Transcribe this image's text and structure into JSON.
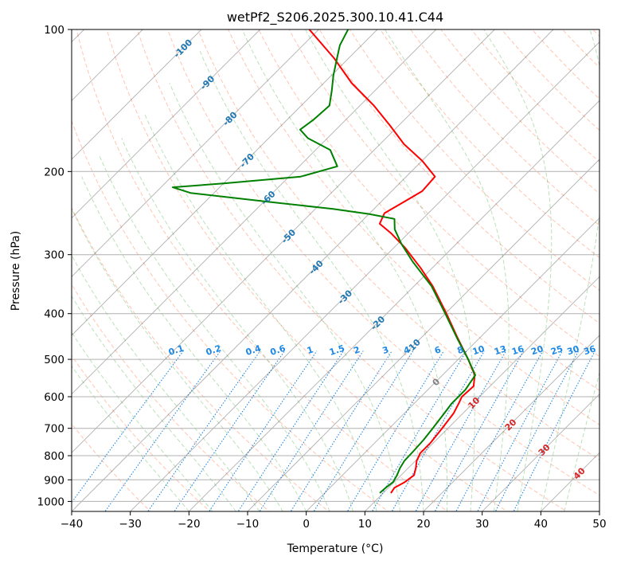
{
  "chart_data": {
    "type": "line",
    "title": "wetPf2_S206.2025.300.10.41.C44",
    "xlabel": "Temperature (°C)",
    "ylabel": "Pressure (hPa)",
    "xlim": [
      -40,
      50
    ],
    "ylim": [
      1050,
      100
    ],
    "x_ticks": [
      -40,
      -30,
      -20,
      -10,
      0,
      10,
      20,
      30,
      40,
      50
    ],
    "x_tick_labels": [
      "−40",
      "−30",
      "−20",
      "−10",
      "0",
      "10",
      "20",
      "30",
      "40",
      "50"
    ],
    "y_ticks": [
      100,
      200,
      300,
      400,
      500,
      600,
      700,
      800,
      900,
      1000
    ],
    "y_tick_labels": [
      "100",
      "200",
      "300",
      "400",
      "500",
      "600",
      "700",
      "800",
      "900",
      "1000"
    ],
    "grid": true,
    "colors": {
      "temperature": "#ff0000",
      "dewpoint": "#008000",
      "isotherm": "#000000",
      "dry_adiabat": "#ff7f50",
      "moist_adiabat": "#2ca02c",
      "mixing_ratio": "#1e88e5",
      "isotherm_label_cold": "#1f77b4",
      "isotherm_label_zero": "#808080",
      "isotherm_label_warm": "#d62728"
    },
    "series": [
      {
        "name": "Temperature",
        "points": [
          {
            "p": 960,
            "t": 11.3
          },
          {
            "p": 935,
            "t": 11.0
          },
          {
            "p": 910,
            "t": 11.8
          },
          {
            "p": 880,
            "t": 12.2
          },
          {
            "p": 850,
            "t": 11.3
          },
          {
            "p": 820,
            "t": 10.2
          },
          {
            "p": 790,
            "t": 9.5
          },
          {
            "p": 750,
            "t": 9.5
          },
          {
            "p": 700,
            "t": 9.0
          },
          {
            "p": 650,
            "t": 8.4
          },
          {
            "p": 620,
            "t": 7.6
          },
          {
            "p": 600,
            "t": 7.0
          },
          {
            "p": 570,
            "t": 7.2
          },
          {
            "p": 540,
            "t": 5.5
          },
          {
            "p": 500,
            "t": 1.7
          },
          {
            "p": 450,
            "t": -3.8
          },
          {
            "p": 400,
            "t": -9.8
          },
          {
            "p": 350,
            "t": -16.8
          },
          {
            "p": 320,
            "t": -22.0
          },
          {
            "p": 290,
            "t": -28.1
          },
          {
            "p": 270,
            "t": -33.0
          },
          {
            "p": 258,
            "t": -36.5
          },
          {
            "p": 245,
            "t": -37.5
          },
          {
            "p": 232,
            "t": -36.1
          },
          {
            "p": 220,
            "t": -34.8
          },
          {
            "p": 205,
            "t": -35.1
          },
          {
            "p": 190,
            "t": -39.9
          },
          {
            "p": 175,
            "t": -45.9
          },
          {
            "p": 160,
            "t": -51.4
          },
          {
            "p": 145,
            "t": -57.6
          },
          {
            "p": 130,
            "t": -65.2
          },
          {
            "p": 115,
            "t": -72.5
          },
          {
            "p": 100,
            "t": -81.6
          }
        ]
      },
      {
        "name": "Dewpoint",
        "points": [
          {
            "p": 960,
            "t": 9.4
          },
          {
            "p": 935,
            "t": 9.5
          },
          {
            "p": 910,
            "t": 9.8
          },
          {
            "p": 880,
            "t": 9.3
          },
          {
            "p": 850,
            "t": 8.6
          },
          {
            "p": 820,
            "t": 8.1
          },
          {
            "p": 780,
            "t": 8.0
          },
          {
            "p": 740,
            "t": 7.8
          },
          {
            "p": 700,
            "t": 7.4
          },
          {
            "p": 650,
            "t": 6.8
          },
          {
            "p": 620,
            "t": 6.4
          },
          {
            "p": 580,
            "t": 6.4
          },
          {
            "p": 540,
            "t": 5.6
          },
          {
            "p": 500,
            "t": 1.7
          },
          {
            "p": 450,
            "t": -3.9
          },
          {
            "p": 400,
            "t": -10.0
          },
          {
            "p": 350,
            "t": -17.0
          },
          {
            "p": 310,
            "t": -24.5
          },
          {
            "p": 285,
            "t": -29.3
          },
          {
            "p": 265,
            "t": -33.0
          },
          {
            "p": 252,
            "t": -34.8
          },
          {
            "p": 246,
            "t": -40.0
          },
          {
            "p": 240,
            "t": -47.0
          },
          {
            "p": 232,
            "t": -59.0
          },
          {
            "p": 222,
            "t": -74.0
          },
          {
            "p": 216,
            "t": -78.0
          },
          {
            "p": 212,
            "t": -70.0
          },
          {
            "p": 205,
            "t": -58.0
          },
          {
            "p": 195,
            "t": -53.5
          },
          {
            "p": 180,
            "t": -57.5
          },
          {
            "p": 170,
            "t": -63.3
          },
          {
            "p": 163,
            "t": -66.1
          },
          {
            "p": 155,
            "t": -65.5
          },
          {
            "p": 145,
            "t": -65.2
          },
          {
            "p": 135,
            "t": -67.3
          },
          {
            "p": 125,
            "t": -69.7
          },
          {
            "p": 115,
            "t": -72.0
          },
          {
            "p": 108,
            "t": -73.7
          },
          {
            "p": 100,
            "t": -75.0
          }
        ]
      }
    ],
    "isotherm_labels": {
      "cold": [
        "-100",
        "-90",
        "-80",
        "-70",
        "-60",
        "-50",
        "-40",
        "-30",
        "-20",
        "-10"
      ],
      "zero": "0",
      "warm": [
        "10",
        "20",
        "30",
        "40"
      ]
    },
    "mixing_ratio_labels": [
      "0.1",
      "0.2",
      "0.4",
      "0.6",
      "1",
      "1.5",
      "2",
      "3",
      "4",
      "6",
      "8",
      "10",
      "13",
      "16",
      "20",
      "25",
      "30",
      "36"
    ]
  }
}
